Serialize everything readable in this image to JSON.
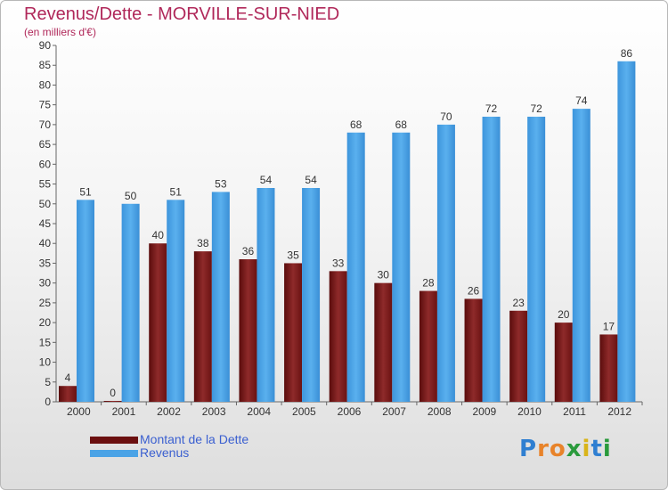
{
  "header": {
    "title": "Revenus/Dette - MORVILLE-SUR-NIED",
    "subtitle": "(en milliers d'€)"
  },
  "chart_data": {
    "type": "bar",
    "title": "Revenus/Dette - MORVILLE-SUR-NIED",
    "subtitle": "(en milliers d'€)",
    "categories": [
      "2000",
      "2001",
      "2002",
      "2003",
      "2004",
      "2005",
      "2006",
      "2007",
      "2008",
      "2009",
      "2010",
      "2011",
      "2012"
    ],
    "series": [
      {
        "name": "Montant de la Dette",
        "color": "#7a1a1a",
        "values": [
          4,
          0,
          40,
          38,
          36,
          35,
          33,
          30,
          28,
          26,
          23,
          20,
          17
        ]
      },
      {
        "name": "Revenus",
        "color": "#4aa3e6",
        "values": [
          51,
          50,
          51,
          53,
          54,
          54,
          68,
          68,
          70,
          72,
          72,
          74,
          86
        ]
      }
    ],
    "ylim": [
      0,
      90
    ],
    "yticks": [
      0,
      5,
      10,
      15,
      20,
      25,
      30,
      35,
      40,
      45,
      50,
      55,
      60,
      65,
      70,
      75,
      80,
      85,
      90
    ],
    "grid": false,
    "legend_position": "bottom-left",
    "data_labels": true
  },
  "legend": {
    "items": [
      {
        "label": "Montant de la Dette",
        "color": "#6b0f0f"
      },
      {
        "label": "Revenus",
        "color": "#4aa3e6"
      }
    ]
  },
  "logo": {
    "letters": [
      {
        "ch": "P",
        "color": "#2f7fd1"
      },
      {
        "ch": "r",
        "color": "#e8832a"
      },
      {
        "ch": "o",
        "color": "#e8832a"
      },
      {
        "ch": "x",
        "color": "#2a9a3c"
      },
      {
        "ch": "i",
        "color": "#d9b41a"
      },
      {
        "ch": "t",
        "color": "#2f7fd1"
      },
      {
        "ch": "i",
        "color": "#2a9a3c"
      }
    ]
  }
}
